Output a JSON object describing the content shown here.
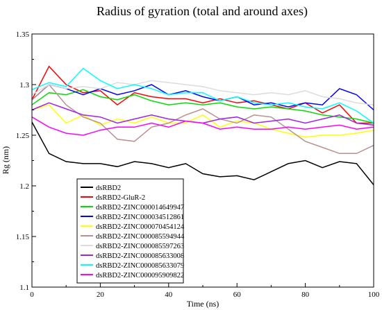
{
  "chart_data": {
    "type": "line",
    "title": "Radius of gyration (total and around axes)",
    "xlabel": "Time (ns)",
    "ylabel": "Rg (nm)",
    "xlim": [
      0,
      100
    ],
    "ylim": [
      1.1,
      1.35
    ],
    "xticks": [
      0,
      20,
      40,
      60,
      80,
      100
    ],
    "yticks": [
      1.1,
      1.15,
      1.2,
      1.25,
      1.3,
      1.35
    ],
    "legend_position": "lower-left",
    "grid": false,
    "x": [
      0,
      5,
      10,
      15,
      20,
      25,
      30,
      35,
      40,
      45,
      50,
      55,
      60,
      65,
      70,
      75,
      80,
      85,
      90,
      95,
      100
    ],
    "series": [
      {
        "name": "dsRBD2",
        "color": "#000000",
        "values": [
          1.263,
          1.232,
          1.224,
          1.222,
          1.222,
          1.219,
          1.224,
          1.222,
          1.218,
          1.222,
          1.212,
          1.209,
          1.21,
          1.206,
          1.214,
          1.222,
          1.225,
          1.218,
          1.224,
          1.222,
          1.201
        ]
      },
      {
        "name": "dsRBD2-GluR-2",
        "color": "#ff0000",
        "values": [
          1.285,
          1.318,
          1.3,
          1.292,
          1.294,
          1.28,
          1.292,
          1.288,
          1.286,
          1.286,
          1.282,
          1.286,
          1.282,
          1.284,
          1.28,
          1.276,
          1.282,
          1.272,
          1.28,
          1.262,
          1.262
        ]
      },
      {
        "name": "dsRBD2-ZINC000014649947",
        "color": "#00dd00",
        "values": [
          1.28,
          1.292,
          1.29,
          1.295,
          1.288,
          1.285,
          1.29,
          1.284,
          1.28,
          1.282,
          1.28,
          1.282,
          1.278,
          1.276,
          1.278,
          1.276,
          1.274,
          1.27,
          1.268,
          1.266,
          1.262
        ]
      },
      {
        "name": "dsRBD2-ZINC000034512861",
        "color": "#0000ff",
        "values": [
          1.285,
          1.3,
          1.296,
          1.29,
          1.296,
          1.29,
          1.294,
          1.3,
          1.29,
          1.294,
          1.288,
          1.284,
          1.288,
          1.28,
          1.282,
          1.278,
          1.282,
          1.28,
          1.296,
          1.29,
          1.275
        ]
      },
      {
        "name": "dsRBD2-ZINC000070454124",
        "color": "#ffff00",
        "values": [
          1.275,
          1.28,
          1.262,
          1.27,
          1.26,
          1.266,
          1.262,
          1.268,
          1.262,
          1.262,
          1.27,
          1.258,
          1.264,
          1.262,
          1.256,
          1.252,
          1.248,
          1.25,
          1.25,
          1.252,
          1.255
        ]
      },
      {
        "name": "dsRBD2-ZINC000085594944",
        "color": "#bc8f8f",
        "values": [
          1.285,
          1.3,
          1.28,
          1.268,
          1.262,
          1.246,
          1.244,
          1.258,
          1.262,
          1.27,
          1.276,
          1.266,
          1.262,
          1.27,
          1.268,
          1.256,
          1.244,
          1.238,
          1.232,
          1.232,
          1.24
        ]
      },
      {
        "name": "dsRBD2-ZINC000085597263",
        "color": "#dcdcdc",
        "values": [
          1.29,
          1.3,
          1.296,
          1.298,
          1.296,
          1.302,
          1.3,
          1.304,
          1.302,
          1.3,
          1.298,
          1.294,
          1.292,
          1.29,
          1.292,
          1.29,
          1.294,
          1.288,
          1.286,
          1.282,
          1.28
        ]
      },
      {
        "name": "dsRBD2-ZINC000085633008",
        "color": "#a020f0",
        "values": [
          1.275,
          1.282,
          1.276,
          1.27,
          1.268,
          1.262,
          1.266,
          1.27,
          1.266,
          1.264,
          1.262,
          1.266,
          1.268,
          1.262,
          1.264,
          1.266,
          1.262,
          1.266,
          1.27,
          1.262,
          1.26
        ]
      },
      {
        "name": "dsRBD2-ZINC000085633079",
        "color": "#00ffff",
        "values": [
          1.295,
          1.302,
          1.298,
          1.316,
          1.304,
          1.296,
          1.3,
          1.296,
          1.29,
          1.292,
          1.292,
          1.284,
          1.288,
          1.282,
          1.28,
          1.282,
          1.278,
          1.276,
          1.282,
          1.274,
          1.262
        ]
      },
      {
        "name": "dsRBD2-ZINC000095909822",
        "color": "#ff00ff",
        "values": [
          1.268,
          1.258,
          1.252,
          1.25,
          1.255,
          1.258,
          1.258,
          1.262,
          1.258,
          1.264,
          1.262,
          1.256,
          1.258,
          1.256,
          1.256,
          1.258,
          1.256,
          1.258,
          1.26,
          1.256,
          1.258
        ]
      }
    ]
  }
}
